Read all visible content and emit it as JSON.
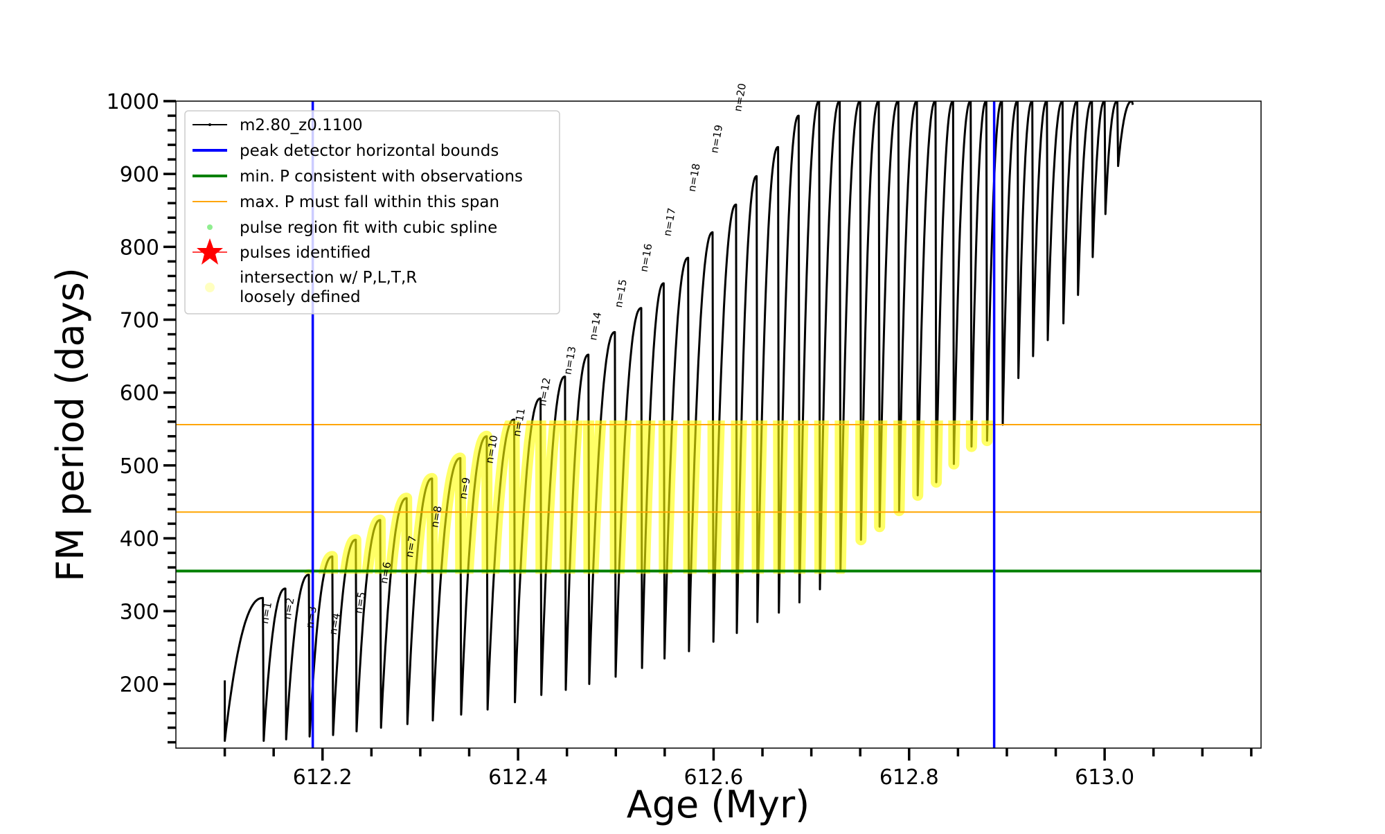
{
  "chart_data": {
    "type": "line",
    "title": "",
    "xlabel": "Age (Myr)",
    "ylabel": "FM period (days)",
    "xlim": [
      612.05,
      613.16
    ],
    "ylim": [
      112,
      1000
    ],
    "x_ticks": [
      "612.2",
      "612.4",
      "612.6",
      "612.8",
      "613.0"
    ],
    "y_ticks": [
      "200",
      "300",
      "400",
      "500",
      "600",
      "700",
      "800",
      "900",
      "1000"
    ],
    "grid": false,
    "legend_position": "top-left",
    "legend": [
      {
        "label": "m2.80_z0.1100",
        "kind": "line-marker",
        "color": "#000000"
      },
      {
        "label": "peak detector horizontal bounds",
        "kind": "thick-line",
        "color": "#0000ff"
      },
      {
        "label": "min. P consistent with observations",
        "kind": "thick-line",
        "color": "#008000"
      },
      {
        "label": "max. P must fall within this span",
        "kind": "thin-line",
        "color": "#ffa500"
      },
      {
        "label": "pulse region fit with cubic spline",
        "kind": "dot",
        "color": "#90ee90"
      },
      {
        "label": "pulses identified",
        "kind": "star",
        "color": "#ff0000"
      },
      {
        "label": "intersection w/ P,L,T,R\nloosely defined",
        "label_lines": [
          "intersection w/ P,L,T,R",
          "loosely defined"
        ],
        "kind": "dot",
        "color": "#ffffc0"
      }
    ],
    "series": [
      {
        "name": "m2.80_z0.1100",
        "color": "#000000",
        "start": {
          "age": 612.1,
          "period": 205
        },
        "first_trough": 122,
        "pulses": [
          {
            "age": 612.139,
            "peak": 318,
            "trough": 122
          },
          {
            "age": 612.162,
            "peak": 331,
            "trough": 124
          },
          {
            "age": 612.186,
            "peak": 350,
            "trough": 128
          },
          {
            "age": 612.21,
            "peak": 375,
            "trough": 130
          },
          {
            "age": 612.234,
            "peak": 398,
            "trough": 135
          },
          {
            "age": 612.259,
            "peak": 425,
            "trough": 140
          },
          {
            "age": 612.286,
            "peak": 455,
            "trough": 145
          },
          {
            "age": 612.312,
            "peak": 482,
            "trough": 150
          },
          {
            "age": 612.341,
            "peak": 510,
            "trough": 158
          },
          {
            "age": 612.368,
            "peak": 540,
            "trough": 165
          },
          {
            "age": 612.396,
            "peak": 563,
            "trough": 175
          },
          {
            "age": 612.423,
            "peak": 592,
            "trough": 185
          },
          {
            "age": 612.448,
            "peak": 622,
            "trough": 192
          },
          {
            "age": 612.472,
            "peak": 652,
            "trough": 200
          },
          {
            "age": 612.499,
            "peak": 683,
            "trough": 210
          },
          {
            "age": 612.526,
            "peak": 716,
            "trough": 222
          },
          {
            "age": 612.549,
            "peak": 750,
            "trough": 235
          },
          {
            "age": 612.574,
            "peak": 785,
            "trough": 245
          },
          {
            "age": 612.599,
            "peak": 820,
            "trough": 258
          },
          {
            "age": 612.623,
            "peak": 858,
            "trough": 270
          },
          {
            "age": 612.644,
            "peak": 897,
            "trough": 285
          },
          {
            "age": 612.666,
            "peak": 937,
            "trough": 298
          },
          {
            "age": 612.687,
            "peak": 980,
            "trough": 312
          },
          {
            "age": 612.708,
            "peak": 1000,
            "trough": 330
          },
          {
            "age": 612.729,
            "peak": 1000,
            "trough": 357
          },
          {
            "age": 612.75,
            "peak": 1000,
            "trough": 398
          },
          {
            "age": 612.769,
            "peak": 1000,
            "trough": 416
          },
          {
            "age": 612.789,
            "peak": 1000,
            "trough": 438
          },
          {
            "age": 612.808,
            "peak": 1000,
            "trough": 459
          },
          {
            "age": 612.827,
            "peak": 1000,
            "trough": 477
          },
          {
            "age": 612.845,
            "peak": 1000,
            "trough": 502
          },
          {
            "age": 612.863,
            "peak": 1000,
            "trough": 526
          },
          {
            "age": 612.879,
            "peak": 1000,
            "trough": 534
          },
          {
            "age": 612.895,
            "peak": 1000,
            "trough": 556
          },
          {
            "age": 612.911,
            "peak": 1000,
            "trough": 620
          },
          {
            "age": 612.926,
            "peak": 1000,
            "trough": 650
          },
          {
            "age": 612.941,
            "peak": 1000,
            "trough": 672
          },
          {
            "age": 612.957,
            "peak": 1000,
            "trough": 695
          },
          {
            "age": 612.972,
            "peak": 1000,
            "trough": 734
          },
          {
            "age": 612.987,
            "peak": 1000,
            "trough": 786
          },
          {
            "age": 613.0,
            "peak": 1000,
            "trough": 845
          },
          {
            "age": 613.013,
            "peak": 1000,
            "trough": 911
          },
          {
            "age": 613.028,
            "peak": 1000,
            "trough": 995
          }
        ]
      }
    ],
    "reference_lines": {
      "vertical_blue": {
        "values": [
          612.19,
          612.887
        ],
        "color": "#0000ff"
      },
      "horizontal_green": {
        "value": 355,
        "color": "#008000"
      },
      "horizontal_orange": {
        "values": [
          436,
          556
        ],
        "color": "#ffa500"
      }
    },
    "highlight": {
      "color": "#ffff00",
      "y_range": [
        355,
        556
      ],
      "x_range": [
        612.19,
        612.887
      ]
    },
    "annotations": [
      {
        "text": "n=1",
        "age": 612.144,
        "period": 282
      },
      {
        "text": "n=2",
        "age": 612.167,
        "period": 288
      },
      {
        "text": "n=3",
        "age": 612.19,
        "period": 276
      },
      {
        "text": "n=4",
        "age": 612.214,
        "period": 267
      },
      {
        "text": "n=5",
        "age": 612.24,
        "period": 296
      },
      {
        "text": "n=6",
        "age": 612.266,
        "period": 337
      },
      {
        "text": "n=7",
        "age": 612.292,
        "period": 373
      },
      {
        "text": "n=8",
        "age": 612.318,
        "period": 414
      },
      {
        "text": "n=9",
        "age": 612.347,
        "period": 453
      },
      {
        "text": "n=10",
        "age": 612.374,
        "period": 502
      },
      {
        "text": "n=11",
        "age": 612.402,
        "period": 539
      },
      {
        "text": "n=12",
        "age": 612.428,
        "period": 581
      },
      {
        "text": "n=13",
        "age": 612.454,
        "period": 624
      },
      {
        "text": "n=14",
        "age": 612.48,
        "period": 671
      },
      {
        "text": "n=15",
        "age": 612.506,
        "period": 716
      },
      {
        "text": "n=16",
        "age": 612.532,
        "period": 765
      },
      {
        "text": "n=17",
        "age": 612.556,
        "period": 814
      },
      {
        "text": "n=18",
        "age": 612.581,
        "period": 875
      },
      {
        "text": "n=19",
        "age": 612.604,
        "period": 928
      },
      {
        "text": "n=20",
        "age": 612.628,
        "period": 985
      }
    ]
  }
}
